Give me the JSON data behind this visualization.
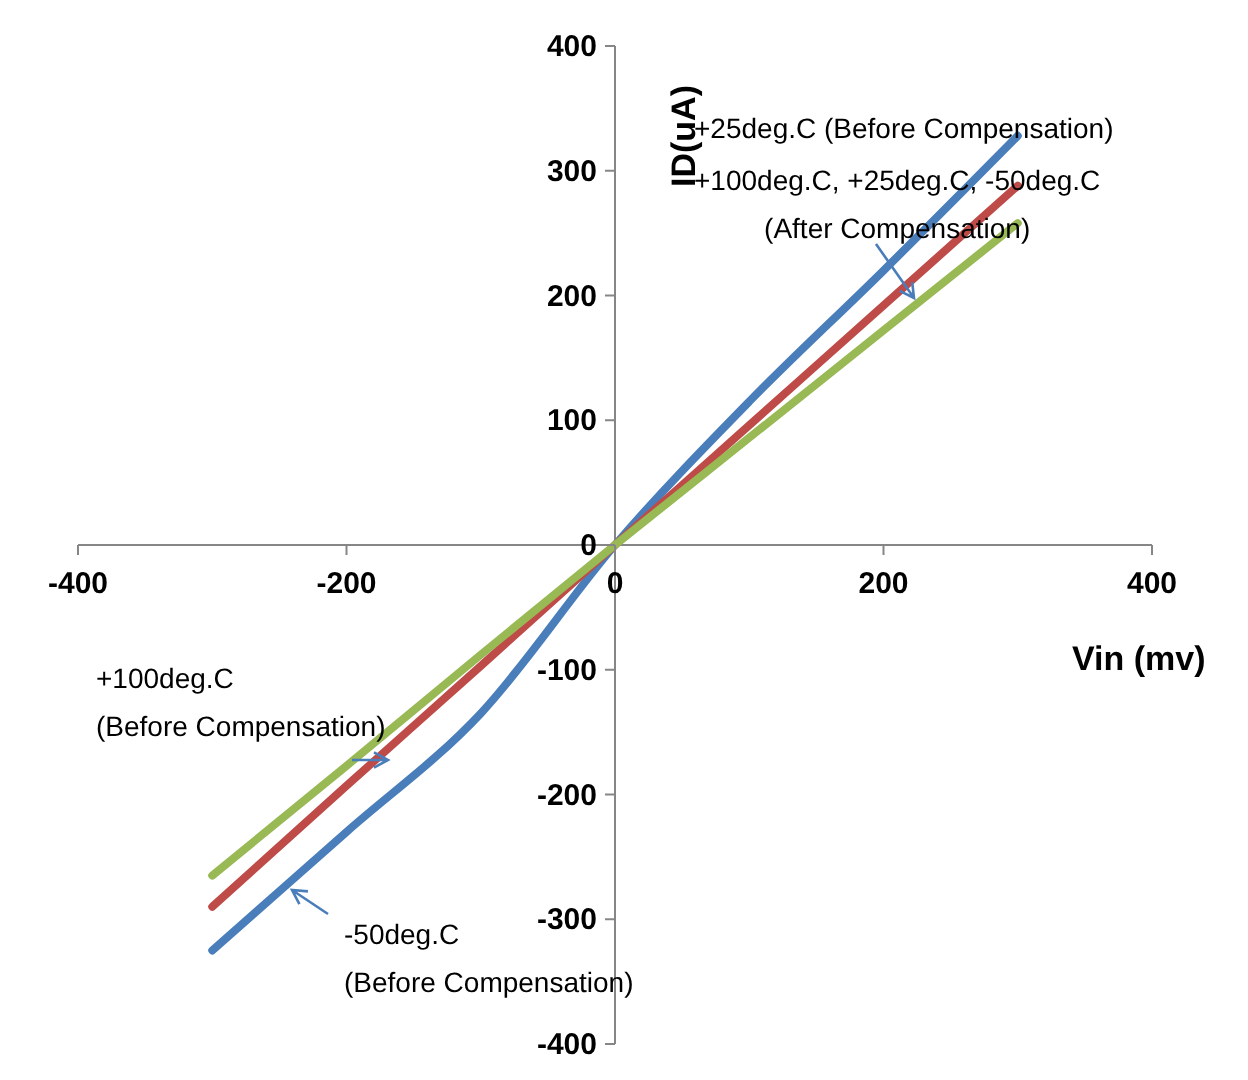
{
  "chart_data": {
    "type": "line",
    "xlabel": "Vin (mv)",
    "ylabel": "ID(uA)",
    "x": [
      -300,
      -200,
      -100,
      0,
      100,
      200,
      300
    ],
    "series": [
      {
        "color": "#4a7ebb",
        "values": [
          -325,
          -230,
          -135,
          0,
          115,
          220,
          328
        ]
      },
      {
        "color": "#be4b48",
        "values": [
          -290,
          -193,
          -97,
          0,
          96,
          192,
          288
        ]
      },
      {
        "color": "#98b954",
        "values": [
          -265,
          -177,
          -88,
          0,
          86,
          172,
          258
        ]
      }
    ],
    "xlim": [
      -400,
      400
    ],
    "xticks": [
      -400,
      -200,
      0,
      200,
      400
    ],
    "ylim": [
      -400,
      400
    ],
    "yticks": [
      -400,
      -300,
      -200,
      -100,
      0,
      100,
      200,
      300,
      400
    ],
    "grid": false,
    "legend": false,
    "marker": "none",
    "line_style": "solid",
    "annotations": [
      "+25deg.C (Before Compensation)",
      "+100deg.C, +25deg.C, -50deg.C\n(After Compensation)",
      "+100deg.C\n(Before Compensation)",
      "-50deg.C\n(Before Compensation)"
    ]
  }
}
